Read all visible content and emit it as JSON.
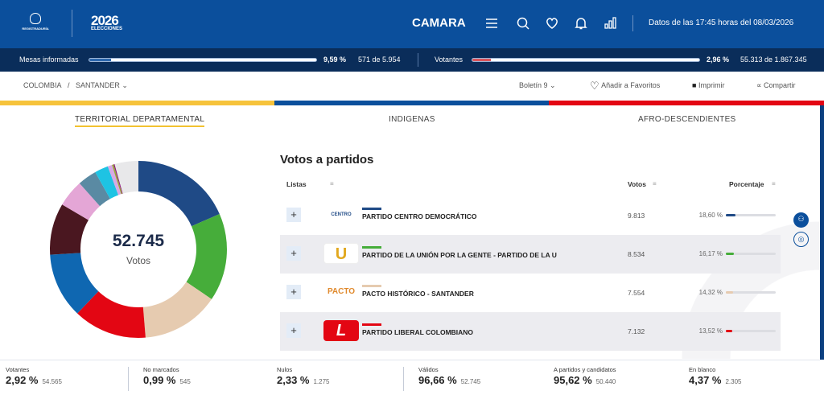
{
  "header": {
    "logo_registraduria": "REGISTRADURÍA",
    "logo_elecciones_year": "2026",
    "logo_elecciones": "ELECCIONES",
    "section": "CAMARA",
    "datos": "Datos de las 17:45 horas del 08/03/2026"
  },
  "stats": {
    "mesas": {
      "label": "Mesas informadas",
      "pct": "9,59 %",
      "count": "571 de 5.954",
      "fill": 9.59
    },
    "votantes": {
      "label": "Votantes",
      "pct": "2,96 %",
      "count": "55.313 de 1.867.345",
      "fill": 2.96
    }
  },
  "breadcrumb": {
    "country": "COLOMBIA",
    "sep": "/",
    "department": "SANTANDER"
  },
  "actions": {
    "boletin": "Boletín 9",
    "favoritos": "Añadir a Favoritos",
    "imprimir": "Imprimir",
    "compartir": "Compartir"
  },
  "tabs": [
    {
      "label": "TERRITORIAL DEPARTAMENTAL",
      "active": true
    },
    {
      "label": "INDIGENAS"
    },
    {
      "label": "AFRO-DESCENDIENTES"
    }
  ],
  "donut": {
    "total": "52.745",
    "label": "Votos"
  },
  "table": {
    "title": "Votos a partidos",
    "headers": {
      "listas": "Listas",
      "votos": "Votos",
      "porcentaje": "Porcentaje"
    },
    "rows": [
      {
        "name": "PARTIDO CENTRO DEMOCRÁTICO",
        "logo": "CENTRO",
        "votes": "9.813",
        "pct": "18,60 %",
        "value": 18.6,
        "color": "#1f4a86"
      },
      {
        "name": "PARTIDO DE LA UNIÓN POR LA GENTE - PARTIDO DE LA U",
        "logo": "U",
        "votes": "8.534",
        "pct": "16,17 %",
        "value": 16.17,
        "color": "#46ad3a"
      },
      {
        "name": "PACTO HISTÓRICO - SANTANDER",
        "logo": "PACTO",
        "votes": "7.554",
        "pct": "14,32 %",
        "value": 14.32,
        "color": "#e6cbb0"
      },
      {
        "name": "PARTIDO LIBERAL COLOMBIANO",
        "logo": "L",
        "votes": "7.132",
        "pct": "13,52 %",
        "value": 13.52,
        "color": "#e30613"
      }
    ]
  },
  "chart_data": {
    "type": "pie",
    "title": "52.745 Votos",
    "values": [
      18.6,
      16.17,
      14.32,
      13.52,
      12.0,
      9.5,
      5.0,
      3.5,
      2.5,
      0.8,
      0.3,
      0.2,
      4.37
    ],
    "colors": [
      "#1f4a86",
      "#46ad3a",
      "#e6cbb0",
      "#e30613",
      "#0f67b1",
      "#4a1720",
      "#e4a6d6",
      "#5a8aa3",
      "#1ec3e3",
      "#d8a9e3",
      "#9aa83a",
      "#8e1b7a",
      "#e8e8ea"
    ]
  },
  "footer": [
    {
      "label": "Votantes",
      "pct": "2,92 %",
      "num": "54.565"
    },
    {
      "label": "No marcados",
      "pct": "0,99 %",
      "num": "545"
    },
    {
      "label": "Nulos",
      "pct": "2,33 %",
      "num": "1.275"
    },
    {
      "label": "Válidos",
      "pct": "96,66 %",
      "num": "52.745"
    },
    {
      "label": "A partidos y candidatos",
      "pct": "95,62 %",
      "num": "50.440"
    },
    {
      "label": "En blanco",
      "pct": "4,37 %",
      "num": "2.305"
    }
  ]
}
